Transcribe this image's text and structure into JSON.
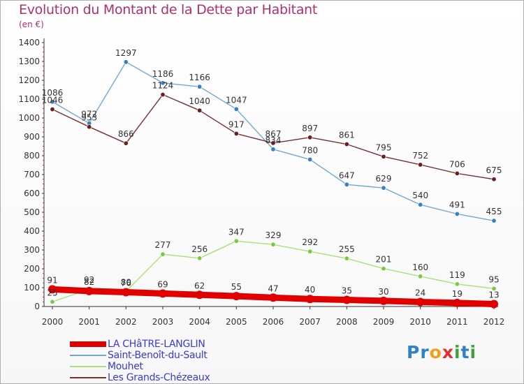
{
  "title": "Evolution du Montant de la Dette par Habitant",
  "unit_label": "(en €)",
  "logo": {
    "text": "Proxiti",
    "letters": [
      "P",
      "r",
      "o",
      "x",
      "i",
      "t",
      "i"
    ],
    "colors": [
      "#2f80c8",
      "#2f80c8",
      "#f0a020",
      "#e03030",
      "#40a040",
      "#2f80c8",
      "#40a040"
    ]
  },
  "chart_data": {
    "type": "line",
    "title": "Evolution du Montant de la Dette par Habitant",
    "ylabel": "(en €)",
    "xlabel": "",
    "x": [
      "2000",
      "2001",
      "2002",
      "2003",
      "2004",
      "2005",
      "2006",
      "2007",
      "2008",
      "2009",
      "2010",
      "2011",
      "2012"
    ],
    "ylim": [
      0,
      1400
    ],
    "yticks": [
      0,
      100,
      200,
      300,
      400,
      500,
      600,
      700,
      800,
      900,
      1000,
      1100,
      1200,
      1300,
      1400
    ],
    "grid": false,
    "legend_position": "bottom-left",
    "series": [
      {
        "name": "LA CHâTRE-LANGLIN",
        "color": "#e00000",
        "width": "thick",
        "values": [
          91,
          82,
          76,
          69,
          62,
          55,
          47,
          40,
          35,
          30,
          24,
          19,
          13
        ]
      },
      {
        "name": "Saint-Benoît-du-Sault",
        "color": "#6fa8d6",
        "marker": "#3a7fc0",
        "values": [
          1086,
          972,
          1297,
          1186,
          1166,
          1047,
          834,
          780,
          647,
          629,
          540,
          491,
          455
        ]
      },
      {
        "name": "Mouhet",
        "color": "#a8e07a",
        "marker": "#7cc840",
        "values": [
          25,
          92,
          80,
          277,
          256,
          347,
          329,
          292,
          255,
          201,
          160,
          119,
          95
        ]
      },
      {
        "name": "Les Grands-Chézeaux",
        "color": "#7a3030",
        "marker": "#6a2020",
        "values": [
          1046,
          953,
          866,
          1124,
          1040,
          917,
          867,
          897,
          861,
          795,
          752,
          706,
          675
        ]
      }
    ]
  }
}
